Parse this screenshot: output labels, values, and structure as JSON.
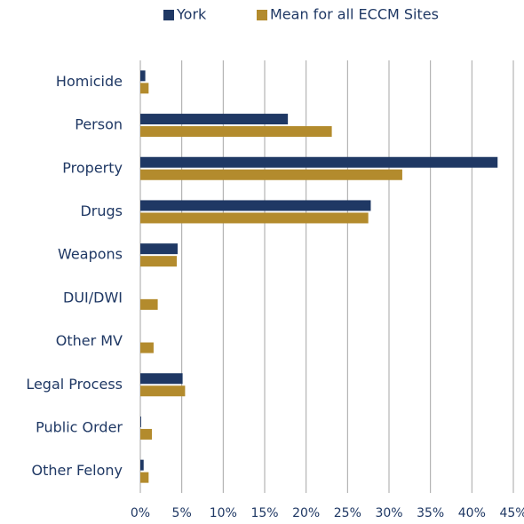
{
  "chart_data": {
    "type": "hbar",
    "categories": [
      "Homicide",
      "Person",
      "Property",
      "Drugs",
      "Weapons",
      "DUI/DWI",
      "Other MV",
      "Legal Process",
      "Public Order",
      "Other Felony"
    ],
    "series": [
      {
        "name": "York",
        "color": "#1f3864",
        "values": [
          0.6,
          17.8,
          43.1,
          27.8,
          4.5,
          0,
          0,
          5.1,
          0.1,
          0.4
        ]
      },
      {
        "name": "Mean for all ECCM Sites",
        "color": "#b38b2d",
        "values": [
          1.0,
          23.1,
          31.6,
          27.5,
          4.4,
          2.1,
          1.6,
          5.4,
          1.4,
          1.0
        ]
      }
    ],
    "xlim": [
      0,
      45
    ],
    "xticks": [
      {
        "value": 0,
        "label": "0%"
      },
      {
        "value": 5,
        "label": "5%"
      },
      {
        "value": 10,
        "label": "10%"
      },
      {
        "value": 15,
        "label": "15%"
      },
      {
        "value": 20,
        "label": "20%"
      },
      {
        "value": 25,
        "label": "25%"
      },
      {
        "value": 30,
        "label": "30%"
      },
      {
        "value": 35,
        "label": "35%"
      },
      {
        "value": 40,
        "label": "40%"
      },
      {
        "value": 45,
        "label": "45%"
      }
    ],
    "grid": true,
    "legend": "top"
  }
}
